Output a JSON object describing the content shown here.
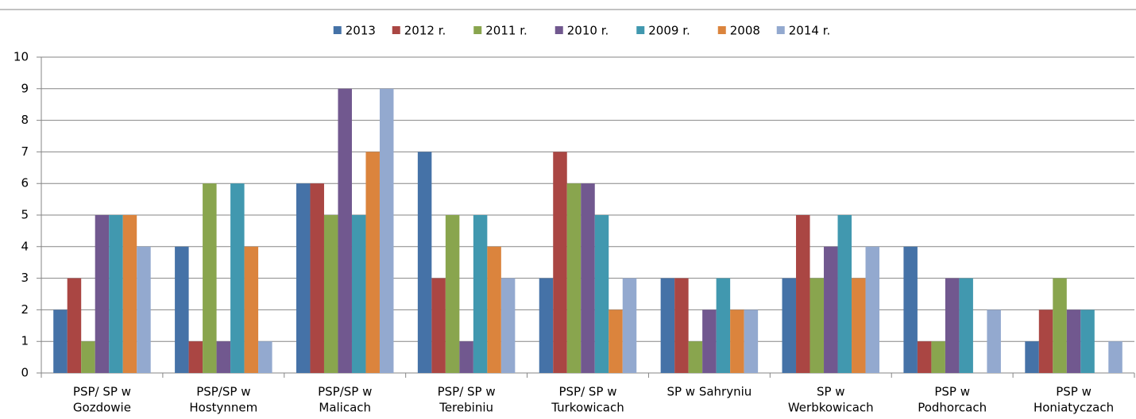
{
  "chart_data": {
    "type": "bar",
    "categories": [
      [
        "PSP/ SP w",
        "Gozdowie"
      ],
      [
        "PSP/SP w",
        "Hostynnem"
      ],
      [
        "PSP/SP w",
        "Malicach"
      ],
      [
        "PSP/ SP w",
        "Terebiniu"
      ],
      [
        "PSP/ SP w",
        "Turkowicach"
      ],
      [
        "SP w Sahryniu"
      ],
      [
        "SP w",
        "Werbkowicach"
      ],
      [
        "PSP w",
        "Podhorcach"
      ],
      [
        "PSP w",
        "Honiatyczach"
      ]
    ],
    "series": [
      {
        "name": "2013",
        "color": "#4572a7",
        "values": [
          2,
          4,
          6,
          7,
          3,
          3,
          3,
          4,
          1
        ]
      },
      {
        "name": "2012 r.",
        "color": "#aa4643",
        "values": [
          3,
          1,
          6,
          3,
          7,
          3,
          5,
          1,
          2
        ]
      },
      {
        "name": "2011 r.",
        "color": "#89a54e",
        "values": [
          1,
          6,
          5,
          5,
          6,
          1,
          3,
          1,
          3
        ]
      },
      {
        "name": "2010 r.",
        "color": "#71588f",
        "values": [
          5,
          1,
          9,
          1,
          6,
          2,
          4,
          3,
          2
        ]
      },
      {
        "name": "2009 r.",
        "color": "#4198af",
        "values": [
          5,
          6,
          5,
          5,
          5,
          3,
          5,
          3,
          2
        ]
      },
      {
        "name": "2008",
        "color": "#db843d",
        "values": [
          5,
          4,
          7,
          4,
          2,
          2,
          3,
          0,
          0
        ]
      },
      {
        "name": "2014 r.",
        "color": "#93a9cf",
        "values": [
          4,
          1,
          9,
          3,
          3,
          2,
          4,
          2,
          1
        ]
      }
    ],
    "ylim": [
      0,
      10
    ],
    "yticks": [
      0,
      1,
      2,
      3,
      4,
      5,
      6,
      7,
      8,
      9,
      10
    ],
    "grid": true,
    "legend": "top"
  }
}
